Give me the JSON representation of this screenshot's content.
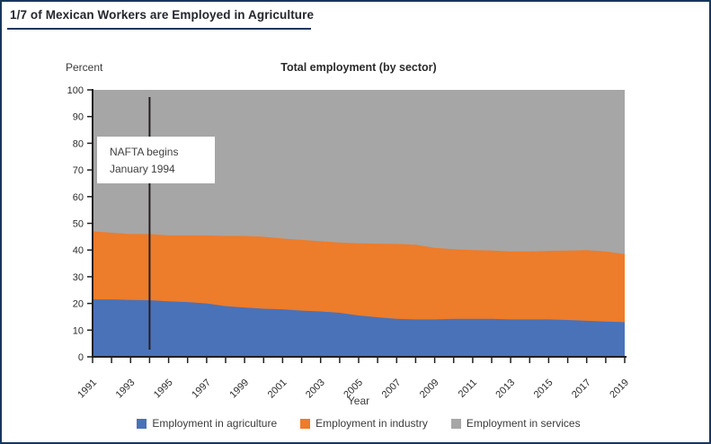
{
  "header": {
    "title": "1/7 of Mexican Workers are Employed in Agriculture"
  },
  "chart_data": {
    "type": "area",
    "stacked": true,
    "title": "Total employment (by sector)",
    "xlabel": "Year",
    "ylabel": "Percent",
    "ylim": [
      0,
      100
    ],
    "yticks": [
      0,
      10,
      20,
      30,
      40,
      50,
      60,
      70,
      80,
      90,
      100
    ],
    "grid": false,
    "legend_position": "bottom",
    "x": [
      1991,
      1992,
      1993,
      1994,
      1995,
      1996,
      1997,
      1998,
      1999,
      2000,
      2001,
      2002,
      2003,
      2004,
      2005,
      2006,
      2007,
      2008,
      2009,
      2010,
      2011,
      2012,
      2013,
      2014,
      2015,
      2016,
      2017,
      2018,
      2019
    ],
    "xtick_labels": [
      "1991",
      "1993",
      "1995",
      "1997",
      "1999",
      "2001",
      "2003",
      "2005",
      "2007",
      "2009",
      "2011",
      "2013",
      "2015",
      "2017",
      "2019"
    ],
    "series": [
      {
        "name": "Employment in agriculture",
        "color": "#4A72B8",
        "values": [
          21.5,
          21.5,
          21.3,
          21.2,
          20.8,
          20.5,
          20.0,
          19.0,
          18.5,
          18.0,
          17.8,
          17.3,
          17.0,
          16.5,
          15.5,
          14.8,
          14.2,
          14.0,
          14.0,
          14.2,
          14.2,
          14.2,
          14.0,
          14.0,
          14.0,
          13.8,
          13.5,
          13.2,
          13.0
        ]
      },
      {
        "name": "Employment in industry",
        "color": "#ED7C2B",
        "values": [
          25.5,
          25.0,
          24.7,
          24.8,
          24.7,
          25.0,
          25.5,
          26.3,
          26.8,
          27.0,
          26.5,
          26.5,
          26.3,
          26.3,
          27.0,
          27.6,
          28.1,
          28.0,
          26.8,
          26.1,
          25.8,
          25.6,
          25.5,
          25.5,
          25.7,
          26.0,
          26.5,
          26.3,
          25.5
        ]
      },
      {
        "name": "Employment in services",
        "color": "#A6A6A6",
        "values": [
          53.0,
          53.5,
          54.0,
          54.0,
          54.5,
          54.5,
          54.5,
          54.7,
          54.7,
          55.0,
          55.7,
          56.2,
          56.7,
          57.2,
          57.5,
          57.6,
          57.7,
          58.0,
          59.2,
          59.7,
          60.0,
          60.2,
          60.5,
          60.5,
          60.3,
          60.2,
          60.0,
          60.5,
          61.5
        ]
      }
    ],
    "annotation": {
      "line1": "NAFTA begins",
      "line2": "January 1994",
      "x": 1994
    }
  },
  "colors": {
    "frame_border": "#17365D",
    "axis": "#231F20",
    "annotation_bg": "#FFFFFF"
  }
}
